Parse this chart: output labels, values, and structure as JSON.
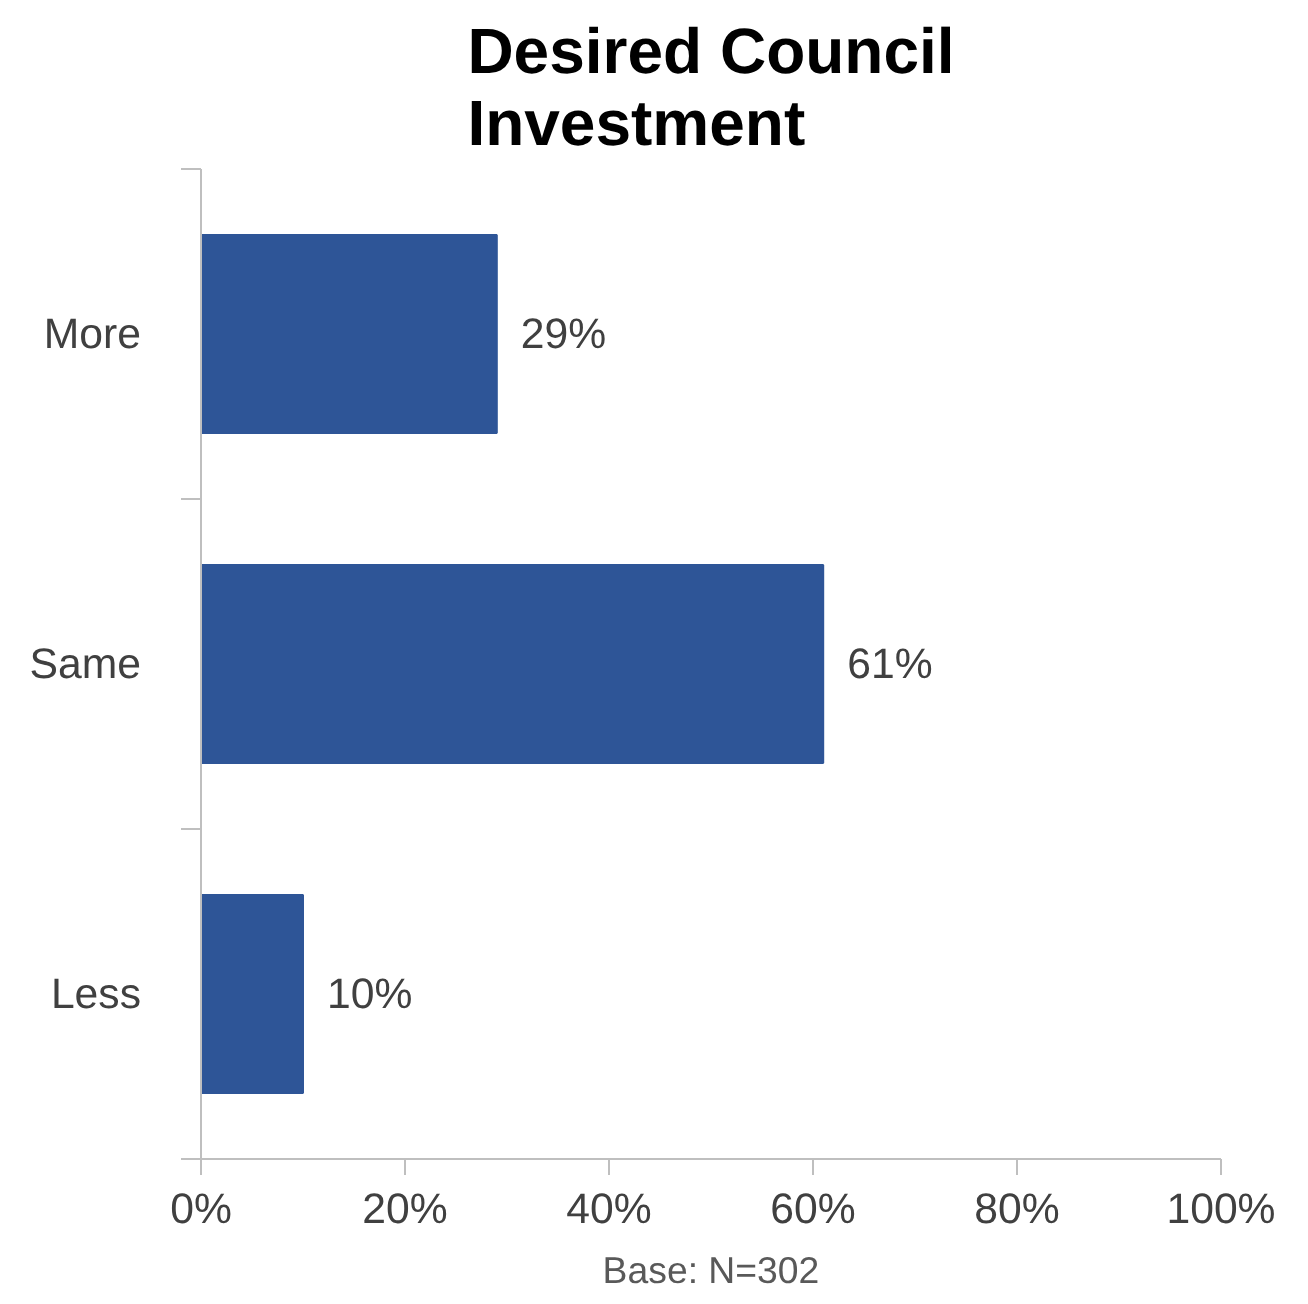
{
  "chart_data": {
    "type": "bar",
    "orientation": "horizontal",
    "title": "Desired Council\nInvestment",
    "xlabel": "Base: N=302",
    "categories": [
      "More",
      "Same",
      "Less"
    ],
    "values": [
      29,
      61,
      10
    ],
    "value_labels": [
      "29%",
      "61%",
      "10%"
    ],
    "color": "#2e5597",
    "xlim": [
      0,
      100
    ],
    "xticks": [
      {
        "value": 0,
        "label": "0%"
      },
      {
        "value": 20,
        "label": "20%"
      },
      {
        "value": 40,
        "label": "40%"
      },
      {
        "value": 60,
        "label": "60%"
      },
      {
        "value": 80,
        "label": "80%"
      },
      {
        "value": 100,
        "label": "100%"
      }
    ],
    "grid": false
  }
}
